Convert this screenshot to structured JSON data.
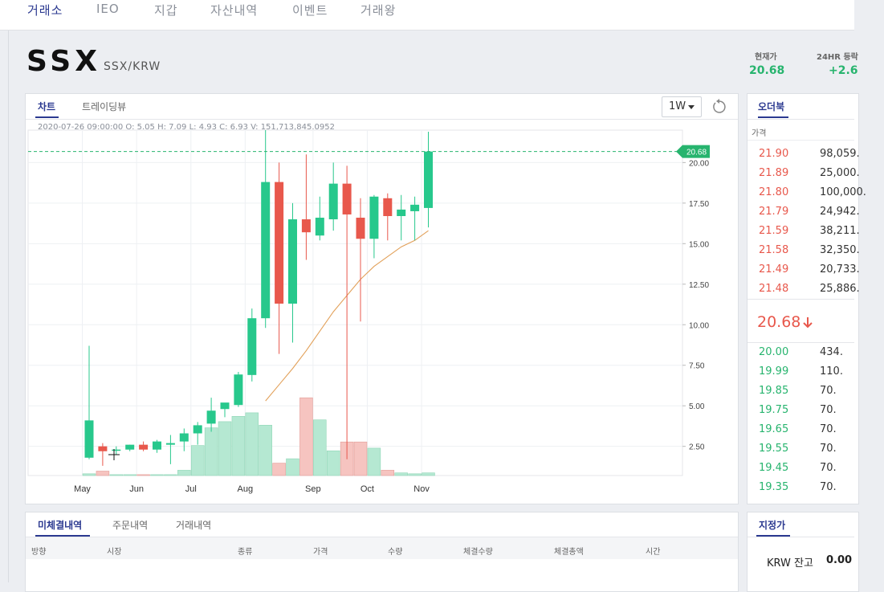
{
  "nav": {
    "items": [
      "거래소",
      "IEO",
      "지갑",
      "자산내역",
      "이벤트",
      "거래왕"
    ]
  },
  "header": {
    "symbol": "SSX",
    "pair": "SSX/KRW",
    "current_label": "현재가",
    "current_value": "20.68",
    "change_label": "24HR 등락",
    "change_value": "+2.6"
  },
  "chart_panel": {
    "tabs": [
      "차트",
      "트레이딩뷰"
    ],
    "interval": "1W",
    "ohlc": "2020-07-26 09:00:00  O: 5.05  H: 7.09  L: 4.93  C: 6.93  V: 151,713,845.0952",
    "last_price_tag": "20.68"
  },
  "chart_data": {
    "type": "candlestick",
    "x_labels": [
      "May",
      "Jun",
      "Jul",
      "Aug",
      "Sep",
      "Oct",
      "Nov"
    ],
    "y_ticks": [
      "2.50",
      "5.00",
      "7.50",
      "10.00",
      "12.50",
      "15.00",
      "17.50",
      "20.00"
    ],
    "ylim": [
      0.7,
      22.0
    ],
    "last_price": 20.68,
    "candles": [
      {
        "o": 1.8,
        "h": 8.7,
        "l": 1.7,
        "c": 4.1
      },
      {
        "o": 2.5,
        "h": 2.7,
        "l": 1.3,
        "c": 2.2
      },
      {
        "o": 2.3,
        "h": 2.5,
        "l": 2.0,
        "c": 2.3
      },
      {
        "o": 2.3,
        "h": 2.6,
        "l": 2.2,
        "c": 2.6
      },
      {
        "o": 2.6,
        "h": 2.8,
        "l": 2.2,
        "c": 2.3
      },
      {
        "o": 2.3,
        "h": 2.9,
        "l": 2.1,
        "c": 2.8
      },
      {
        "o": 2.6,
        "h": 3.2,
        "l": 1.4,
        "c": 2.7
      },
      {
        "o": 2.8,
        "h": 3.6,
        "l": 2.2,
        "c": 3.3
      },
      {
        "o": 3.3,
        "h": 4.0,
        "l": 2.6,
        "c": 3.8
      },
      {
        "o": 3.9,
        "h": 5.5,
        "l": 3.4,
        "c": 4.7
      },
      {
        "o": 4.8,
        "h": 5.0,
        "l": 4.3,
        "c": 5.2
      },
      {
        "o": 5.05,
        "h": 7.09,
        "l": 4.93,
        "c": 6.93
      },
      {
        "o": 6.9,
        "h": 11.0,
        "l": 6.5,
        "c": 10.4
      },
      {
        "o": 10.4,
        "h": 22.0,
        "l": 9.8,
        "c": 18.8
      },
      {
        "o": 18.8,
        "h": 20.0,
        "l": 8.2,
        "c": 11.3
      },
      {
        "o": 11.3,
        "h": 17.5,
        "l": 8.9,
        "c": 16.5
      },
      {
        "o": 16.5,
        "h": 20.5,
        "l": 14.0,
        "c": 15.7
      },
      {
        "o": 15.5,
        "h": 17.9,
        "l": 15.2,
        "c": 16.6
      },
      {
        "o": 16.5,
        "h": 20.0,
        "l": 15.8,
        "c": 18.7
      },
      {
        "o": 18.7,
        "h": 19.8,
        "l": 1.7,
        "c": 16.8
      },
      {
        "o": 16.6,
        "h": 17.8,
        "l": 10.2,
        "c": 15.3
      },
      {
        "o": 15.3,
        "h": 18.0,
        "l": 14.1,
        "c": 17.9
      },
      {
        "o": 17.8,
        "h": 18.1,
        "l": 15.2,
        "c": 16.7
      },
      {
        "o": 16.7,
        "h": 18.0,
        "l": 15.2,
        "c": 17.1
      },
      {
        "o": 17.0,
        "h": 17.9,
        "l": 15.2,
        "c": 17.4
      },
      {
        "o": 17.2,
        "h": 21.9,
        "l": 16.0,
        "c": 20.68
      }
    ],
    "volumes": [
      2,
      5,
      1,
      1,
      1,
      1,
      1,
      6,
      34,
      54,
      61,
      67,
      71,
      57,
      14,
      19,
      88,
      63,
      28,
      38,
      38,
      31,
      6,
      3,
      2,
      3
    ],
    "ma": [
      null,
      null,
      null,
      null,
      null,
      null,
      null,
      null,
      null,
      null,
      null,
      null,
      null,
      5.3,
      6.3,
      7.3,
      8.4,
      9.6,
      10.8,
      11.8,
      12.8,
      13.6,
      14.2,
      14.8,
      15.2,
      15.8
    ]
  },
  "orderbook": {
    "tab": "오더북",
    "price_header": "가격",
    "asks": [
      {
        "price": "21.90",
        "qty": "98,059."
      },
      {
        "price": "21.89",
        "qty": "25,000."
      },
      {
        "price": "21.80",
        "qty": "100,000."
      },
      {
        "price": "21.79",
        "qty": "24,942."
      },
      {
        "price": "21.59",
        "qty": "38,211."
      },
      {
        "price": "21.58",
        "qty": "32,350."
      },
      {
        "price": "21.49",
        "qty": "20,733."
      },
      {
        "price": "21.48",
        "qty": "25,886."
      }
    ],
    "current": "20.68",
    "bids": [
      {
        "price": "20.00",
        "qty": "434."
      },
      {
        "price": "19.99",
        "qty": "110."
      },
      {
        "price": "19.85",
        "qty": "70."
      },
      {
        "price": "19.75",
        "qty": "70."
      },
      {
        "price": "19.65",
        "qty": "70."
      },
      {
        "price": "19.55",
        "qty": "70."
      },
      {
        "price": "19.45",
        "qty": "70."
      },
      {
        "price": "19.35",
        "qty": "70."
      }
    ]
  },
  "orders_panel": {
    "tabs": [
      "미체결내역",
      "주문내역",
      "거래내역"
    ],
    "columns": [
      "방향",
      "시장",
      "종류",
      "가격",
      "수량",
      "체결수량",
      "체결총액",
      "시간"
    ]
  },
  "limit_panel": {
    "tab": "지정가",
    "balance_label": "KRW 잔고",
    "balance_value": "0.00"
  },
  "colors": {
    "up": "#27c88c",
    "down": "#e8584c",
    "accent": "#2b3990"
  }
}
